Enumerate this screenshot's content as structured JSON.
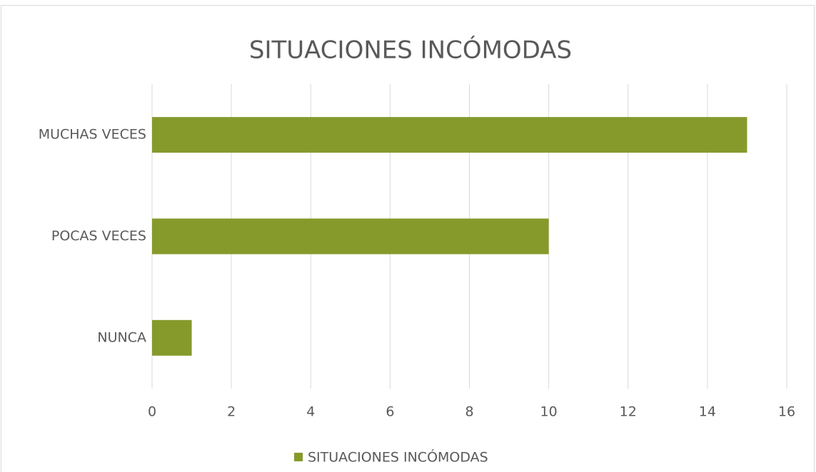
{
  "chart_data": {
    "type": "hbar",
    "title": "SITUACIONES INCÓMODAS",
    "categories": [
      "MUCHAS VECES",
      "POCAS VECES",
      "NUNCA"
    ],
    "series": [
      {
        "name": "SITUACIONES INCÓMODAS",
        "color": "#859a2b",
        "values": [
          15,
          10,
          1
        ]
      }
    ],
    "xlim": [
      0,
      16
    ],
    "xticks": [
      0,
      2,
      4,
      6,
      8,
      10,
      12,
      14,
      16
    ],
    "grid": true,
    "legend": "bottom"
  }
}
